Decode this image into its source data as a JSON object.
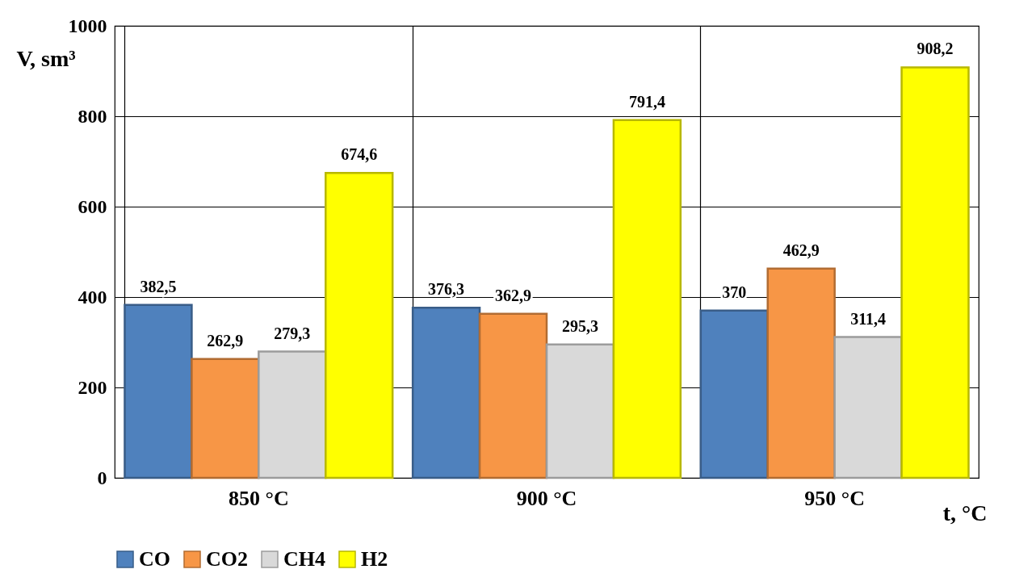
{
  "chart_data": {
    "type": "bar",
    "categories": [
      "850 °C",
      "900 °C",
      "950 °C"
    ],
    "xlabel": "t, °C",
    "ylabel": "V, sm³",
    "series": [
      {
        "name": "CO",
        "color": "#4f81bd",
        "values": [
          382.5,
          376.3,
          370
        ],
        "value_labels": [
          "382,5",
          "376,3",
          "370"
        ]
      },
      {
        "name": "CO2",
        "color": "#f79646",
        "values": [
          262.9,
          362.9,
          462.9
        ],
        "value_labels": [
          "262,9",
          "362,9",
          "462,9"
        ]
      },
      {
        "name": "CH4",
        "color": "#d9d9d9",
        "values": [
          279.3,
          295.3,
          311.4
        ],
        "value_labels": [
          "279,3",
          "295,3",
          "311,4"
        ]
      },
      {
        "name": "H2",
        "color": "#ffff00",
        "values": [
          674.6,
          791.4,
          908.2
        ],
        "value_labels": [
          "674,6",
          "791,4",
          "908,2"
        ]
      }
    ],
    "ylim": [
      0,
      1000
    ],
    "yticks": [
      0,
      200,
      400,
      600,
      800,
      {
        "value": 1000,
        "label": "1000"
      }
    ],
    "grid": true,
    "legend": "bottom"
  }
}
